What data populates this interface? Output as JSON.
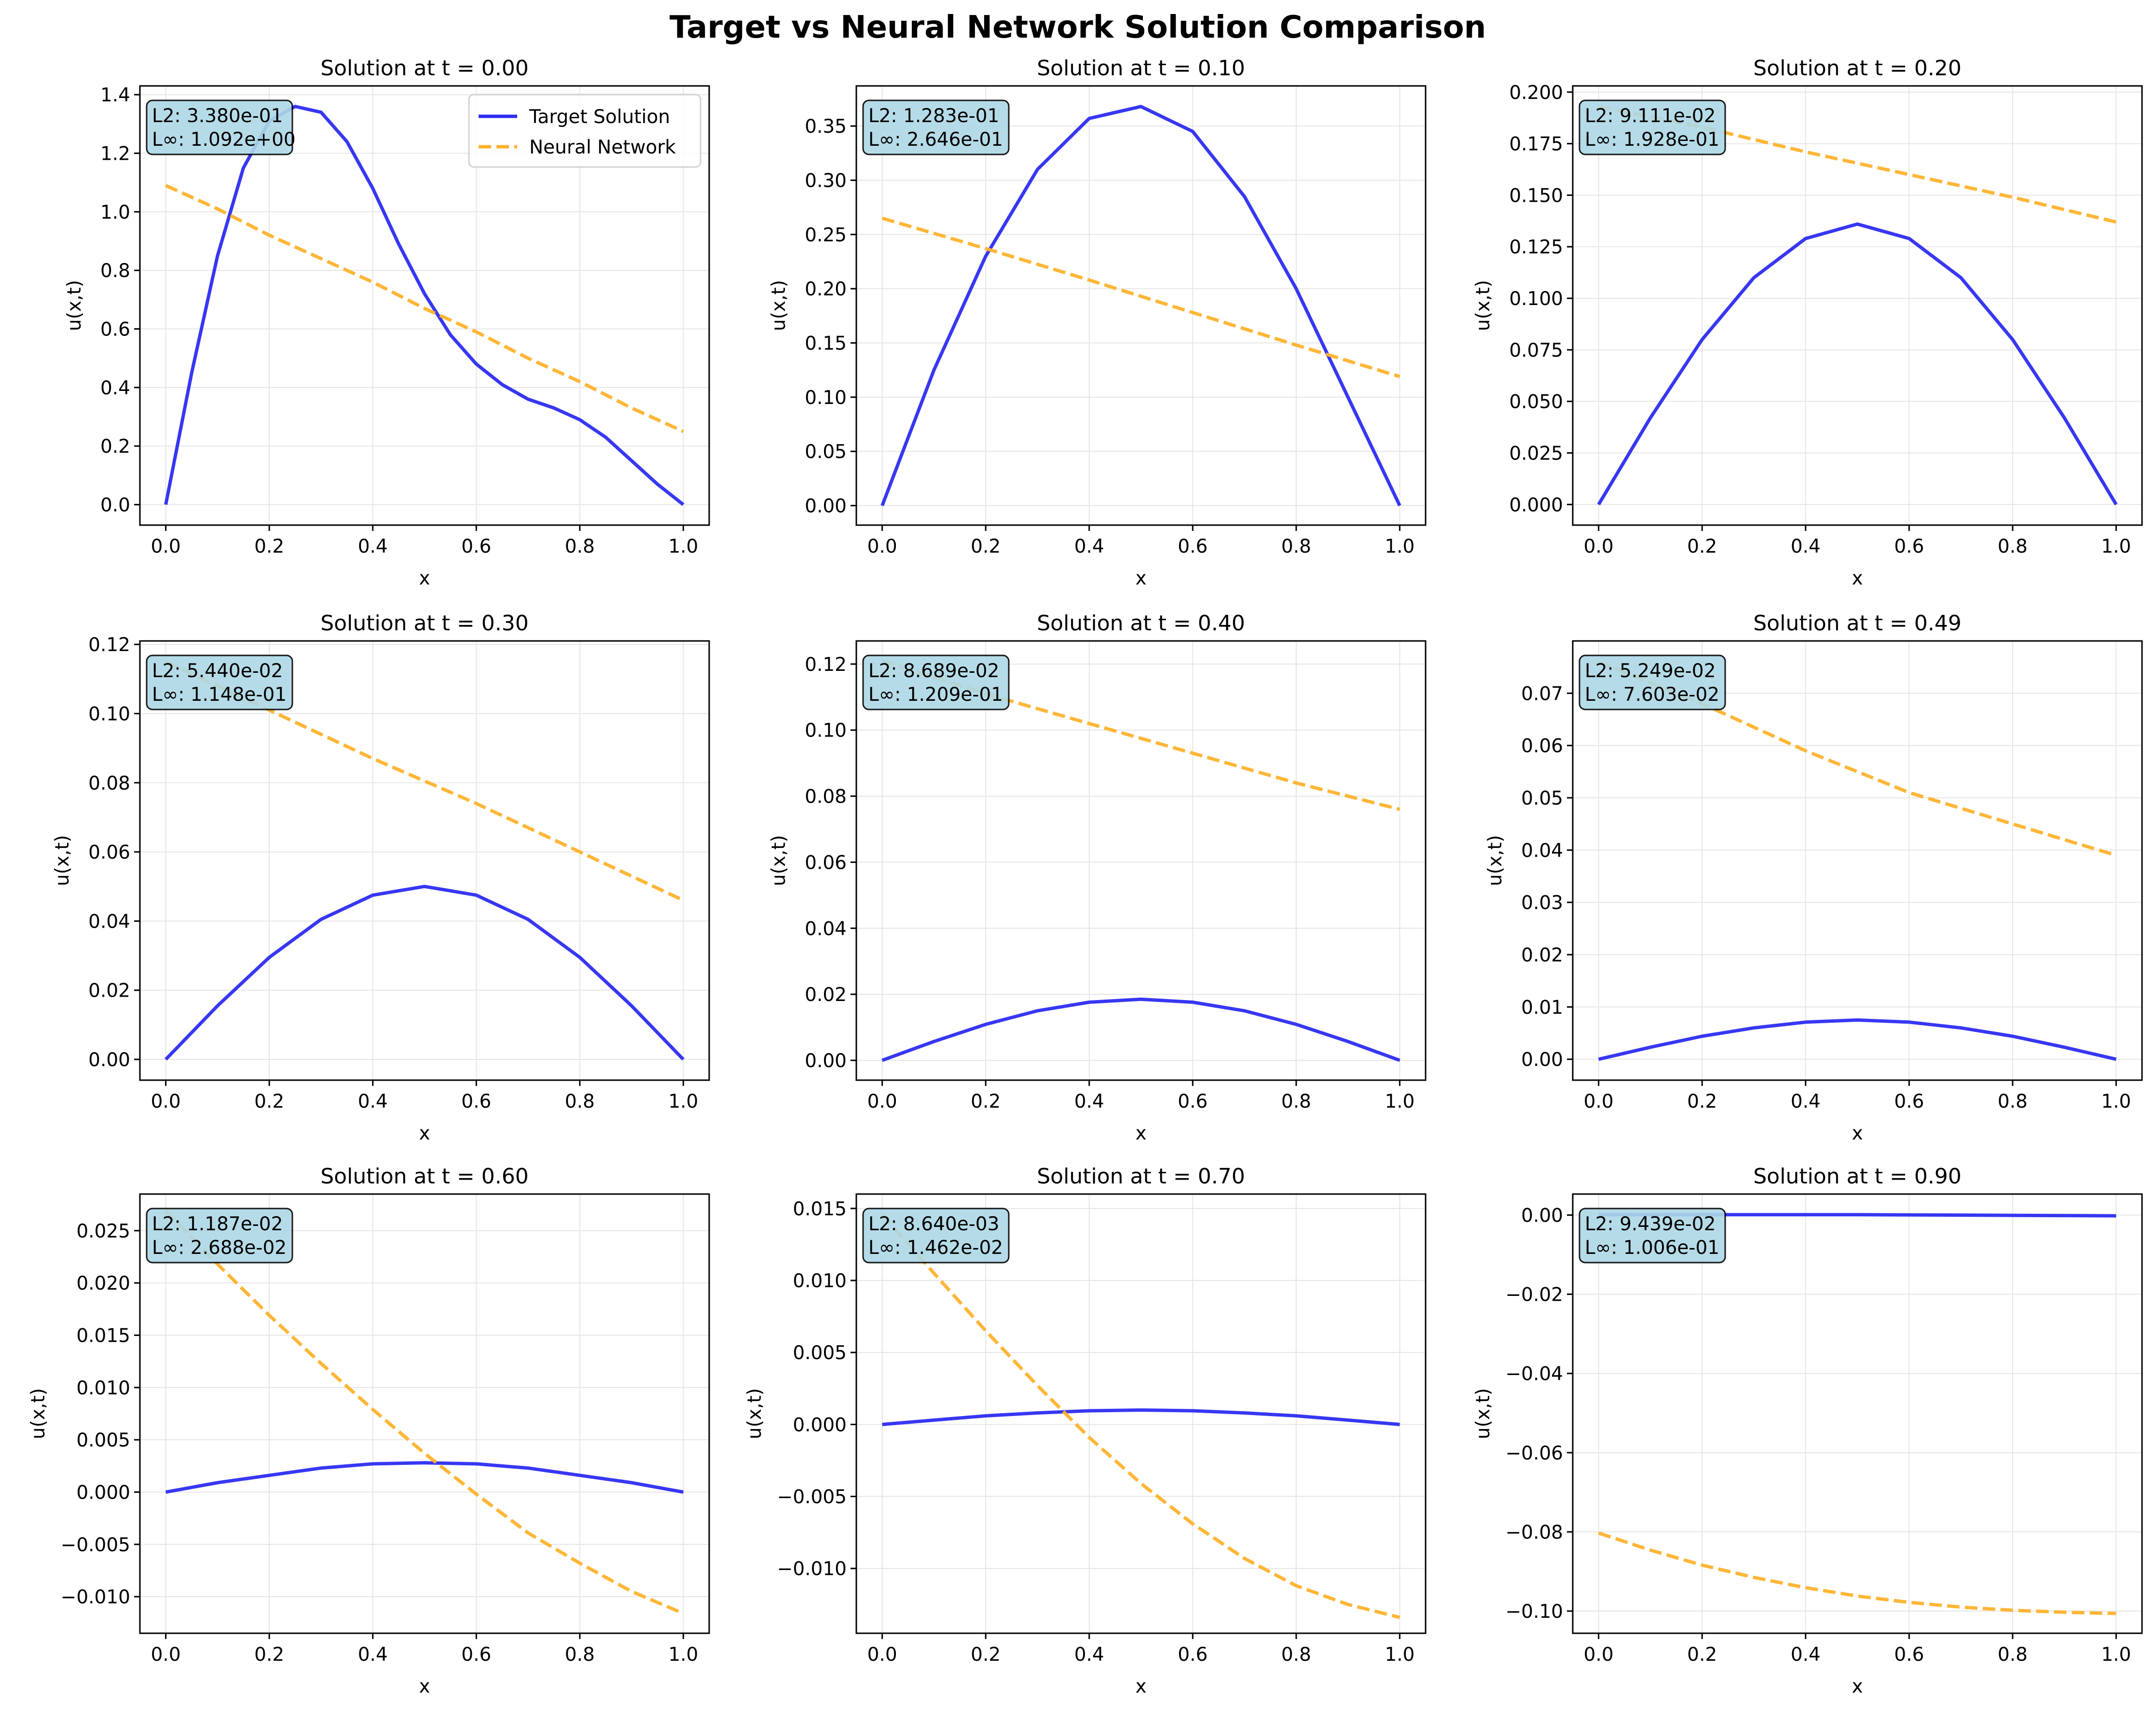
{
  "title": "Target vs Neural Network Solution Comparison",
  "colors": {
    "target": "#2c2cf2",
    "network": "#ffb22c",
    "annotation_bg": "#add8e6",
    "grid": "#e6e6e6"
  },
  "legend": {
    "placement": "upper-right",
    "entries": [
      "Target Solution",
      "Neural Network"
    ]
  },
  "chart_data": [
    {
      "type": "line",
      "title": "Solution at t = 0.00",
      "xlabel": "x",
      "ylabel": "u(x,t)",
      "xlim": [
        -0.05,
        1.05
      ],
      "ylim": [
        -0.07,
        1.43
      ],
      "xticks": [
        0.0,
        0.2,
        0.4,
        0.6,
        0.8,
        1.0
      ],
      "xtick_labels": [
        "0.0",
        "0.2",
        "0.4",
        "0.6",
        "0.8",
        "1.0"
      ],
      "yticks": [
        0,
        0.2,
        0.4,
        0.6,
        0.8,
        1.0,
        1.2,
        1.4
      ],
      "ytick_labels": [
        "0.0",
        "0.2",
        "0.4",
        "0.6",
        "0.8",
        "1.0",
        "1.2",
        "1.4"
      ],
      "annotation": [
        "L2: 3.380e-01",
        "L∞: 1.092e+00"
      ],
      "legend": true,
      "series": [
        {
          "name": "Target Solution",
          "x": [
            0,
            0.05,
            0.1,
            0.15,
            0.2,
            0.25,
            0.3,
            0.35,
            0.4,
            0.45,
            0.5,
            0.55,
            0.6,
            0.65,
            0.7,
            0.75,
            0.8,
            0.85,
            0.9,
            0.95,
            1.0
          ],
          "y": [
            0,
            0.45,
            0.85,
            1.15,
            1.31,
            1.36,
            1.34,
            1.24,
            1.08,
            0.89,
            0.72,
            0.58,
            0.48,
            0.41,
            0.36,
            0.33,
            0.29,
            0.23,
            0.15,
            0.07,
            0
          ]
        },
        {
          "name": "Neural Network",
          "x": [
            0,
            0.1,
            0.2,
            0.3,
            0.4,
            0.5,
            0.6,
            0.7,
            0.8,
            0.9,
            1.0
          ],
          "y": [
            1.09,
            1.01,
            0.92,
            0.84,
            0.76,
            0.67,
            0.59,
            0.5,
            0.42,
            0.33,
            0.25
          ]
        }
      ]
    },
    {
      "type": "line",
      "title": "Solution at t = 0.10",
      "xlabel": "x",
      "ylabel": "u(x,t)",
      "xlim": [
        -0.05,
        1.05
      ],
      "ylim": [
        -0.018,
        0.387
      ],
      "xticks": [
        0.0,
        0.2,
        0.4,
        0.6,
        0.8,
        1.0
      ],
      "xtick_labels": [
        "0.0",
        "0.2",
        "0.4",
        "0.6",
        "0.8",
        "1.0"
      ],
      "yticks": [
        0,
        0.05,
        0.1,
        0.15,
        0.2,
        0.25,
        0.3,
        0.35
      ],
      "ytick_labels": [
        "0.00",
        "0.05",
        "0.10",
        "0.15",
        "0.20",
        "0.25",
        "0.30",
        "0.35"
      ],
      "annotation": [
        "L2: 1.283e-01",
        "L∞: 2.646e-01"
      ],
      "legend": false,
      "series": [
        {
          "name": "Target Solution",
          "x": [
            0,
            0.1,
            0.2,
            0.3,
            0.4,
            0.5,
            0.6,
            0.7,
            0.8,
            0.9,
            1.0
          ],
          "y": [
            0,
            0.125,
            0.23,
            0.31,
            0.357,
            0.368,
            0.345,
            0.285,
            0.2,
            0.1,
            0
          ]
        },
        {
          "name": "Neural Network",
          "x": [
            0,
            0.2,
            0.4,
            0.6,
            0.8,
            1.0
          ],
          "y": [
            0.265,
            0.237,
            0.208,
            0.178,
            0.148,
            0.119
          ]
        }
      ]
    },
    {
      "type": "line",
      "title": "Solution at t = 0.20",
      "xlabel": "x",
      "ylabel": "u(x,t)",
      "xlim": [
        -0.05,
        1.05
      ],
      "ylim": [
        -0.01,
        0.203
      ],
      "xticks": [
        0.0,
        0.2,
        0.4,
        0.6,
        0.8,
        1.0
      ],
      "xtick_labels": [
        "0.0",
        "0.2",
        "0.4",
        "0.6",
        "0.8",
        "1.0"
      ],
      "yticks": [
        0,
        0.025,
        0.05,
        0.075,
        0.1,
        0.125,
        0.15,
        0.175,
        0.2
      ],
      "ytick_labels": [
        "0.000",
        "0.025",
        "0.050",
        "0.075",
        "0.100",
        "0.125",
        "0.150",
        "0.175",
        "0.200"
      ],
      "annotation": [
        "L2: 9.111e-02",
        "L∞: 1.928e-01"
      ],
      "legend": false,
      "series": [
        {
          "name": "Target Solution",
          "x": [
            0,
            0.1,
            0.2,
            0.3,
            0.4,
            0.5,
            0.6,
            0.7,
            0.8,
            0.9,
            1.0
          ],
          "y": [
            0,
            0.042,
            0.08,
            0.11,
            0.129,
            0.136,
            0.129,
            0.11,
            0.08,
            0.042,
            0
          ]
        },
        {
          "name": "Neural Network",
          "x": [
            0,
            0.2,
            0.4,
            0.6,
            0.8,
            1.0
          ],
          "y": [
            0.193,
            0.183,
            0.171,
            0.16,
            0.149,
            0.137
          ]
        }
      ]
    },
    {
      "type": "line",
      "title": "Solution at t = 0.30",
      "xlabel": "x",
      "ylabel": "u(x,t)",
      "xlim": [
        -0.05,
        1.05
      ],
      "ylim": [
        -0.006,
        0.121
      ],
      "xticks": [
        0.0,
        0.2,
        0.4,
        0.6,
        0.8,
        1.0
      ],
      "xtick_labels": [
        "0.0",
        "0.2",
        "0.4",
        "0.6",
        "0.8",
        "1.0"
      ],
      "yticks": [
        0,
        0.02,
        0.04,
        0.06,
        0.08,
        0.1,
        0.12
      ],
      "ytick_labels": [
        "0.00",
        "0.02",
        "0.04",
        "0.06",
        "0.08",
        "0.10",
        "0.12"
      ],
      "annotation": [
        "L2: 5.440e-02",
        "L∞: 1.148e-01"
      ],
      "legend": false,
      "series": [
        {
          "name": "Target Solution",
          "x": [
            0,
            0.1,
            0.2,
            0.3,
            0.4,
            0.5,
            0.6,
            0.7,
            0.8,
            0.9,
            1.0
          ],
          "y": [
            0,
            0.0155,
            0.0295,
            0.0405,
            0.0475,
            0.05,
            0.0475,
            0.0405,
            0.0295,
            0.0155,
            0
          ]
        },
        {
          "name": "Neural Network",
          "x": [
            0,
            0.2,
            0.4,
            0.6,
            0.8,
            1.0
          ],
          "y": [
            0.115,
            0.101,
            0.087,
            0.074,
            0.06,
            0.046
          ]
        }
      ]
    },
    {
      "type": "line",
      "title": "Solution at t = 0.40",
      "xlabel": "x",
      "ylabel": "u(x,t)",
      "xlim": [
        -0.05,
        1.05
      ],
      "ylim": [
        -0.006,
        0.127
      ],
      "xticks": [
        0.0,
        0.2,
        0.4,
        0.6,
        0.8,
        1.0
      ],
      "xtick_labels": [
        "0.0",
        "0.2",
        "0.4",
        "0.6",
        "0.8",
        "1.0"
      ],
      "yticks": [
        0,
        0.02,
        0.04,
        0.06,
        0.08,
        0.1,
        0.12
      ],
      "ytick_labels": [
        "0.00",
        "0.02",
        "0.04",
        "0.06",
        "0.08",
        "0.10",
        "0.12"
      ],
      "annotation": [
        "L2: 8.689e-02",
        "L∞: 1.209e-01"
      ],
      "legend": false,
      "series": [
        {
          "name": "Target Solution",
          "x": [
            0,
            0.1,
            0.2,
            0.3,
            0.4,
            0.5,
            0.6,
            0.7,
            0.8,
            0.9,
            1.0
          ],
          "y": [
            0,
            0.0057,
            0.0109,
            0.015,
            0.0176,
            0.0185,
            0.0176,
            0.015,
            0.0109,
            0.0057,
            0
          ]
        },
        {
          "name": "Neural Network",
          "x": [
            0,
            0.2,
            0.4,
            0.6,
            0.8,
            1.0
          ],
          "y": [
            0.121,
            0.111,
            0.102,
            0.093,
            0.084,
            0.076
          ]
        }
      ]
    },
    {
      "type": "line",
      "title": "Solution at t = 0.49",
      "xlabel": "x",
      "ylabel": "u(x,t)",
      "xlim": [
        -0.05,
        1.05
      ],
      "ylim": [
        -0.004,
        0.08
      ],
      "xticks": [
        0.0,
        0.2,
        0.4,
        0.6,
        0.8,
        1.0
      ],
      "xtick_labels": [
        "0.0",
        "0.2",
        "0.4",
        "0.6",
        "0.8",
        "1.0"
      ],
      "yticks": [
        0,
        0.01,
        0.02,
        0.03,
        0.04,
        0.05,
        0.06,
        0.07
      ],
      "ytick_labels": [
        "0.00",
        "0.01",
        "0.02",
        "0.03",
        "0.04",
        "0.05",
        "0.06",
        "0.07"
      ],
      "annotation": [
        "L2: 5.249e-02",
        "L∞: 7.603e-02"
      ],
      "legend": false,
      "series": [
        {
          "name": "Target Solution",
          "x": [
            0,
            0.1,
            0.2,
            0.3,
            0.4,
            0.5,
            0.6,
            0.7,
            0.8,
            0.9,
            1.0
          ],
          "y": [
            0,
            0.0023,
            0.0044,
            0.006,
            0.0071,
            0.0075,
            0.0071,
            0.006,
            0.0044,
            0.0023,
            0
          ]
        },
        {
          "name": "Neural Network",
          "x": [
            0,
            0.2,
            0.4,
            0.6,
            0.8,
            1.0
          ],
          "y": [
            0.076,
            0.068,
            0.059,
            0.051,
            0.045,
            0.039
          ]
        }
      ]
    },
    {
      "type": "line",
      "title": "Solution at t = 0.60",
      "xlabel": "x",
      "ylabel": "u(x,t)",
      "xlim": [
        -0.05,
        1.05
      ],
      "ylim": [
        -0.0135,
        0.0285
      ],
      "xticks": [
        0.0,
        0.2,
        0.4,
        0.6,
        0.8,
        1.0
      ],
      "xtick_labels": [
        "0.0",
        "0.2",
        "0.4",
        "0.6",
        "0.8",
        "1.0"
      ],
      "yticks": [
        -0.01,
        -0.005,
        0,
        0.005,
        0.01,
        0.015,
        0.02,
        0.025
      ],
      "ytick_labels": [
        "−0.010",
        "−0.005",
        "0.000",
        "0.005",
        "0.010",
        "0.015",
        "0.020",
        "0.025"
      ],
      "annotation": [
        "L2: 1.187e-02",
        "L∞: 2.688e-02"
      ],
      "legend": false,
      "series": [
        {
          "name": "Target Solution",
          "x": [
            0,
            0.1,
            0.2,
            0.3,
            0.4,
            0.5,
            0.6,
            0.7,
            0.8,
            0.9,
            1.0
          ],
          "y": [
            0,
            0.0009,
            0.0016,
            0.0023,
            0.0027,
            0.0028,
            0.0027,
            0.0023,
            0.0016,
            0.0009,
            0
          ]
        },
        {
          "name": "Neural Network",
          "x": [
            0,
            0.1,
            0.2,
            0.3,
            0.4,
            0.5,
            0.6,
            0.7,
            0.8,
            0.9,
            1.0
          ],
          "y": [
            0.0269,
            0.0218,
            0.0169,
            0.0123,
            0.0079,
            0.0037,
            -0.0002,
            -0.0039,
            -0.0068,
            -0.0095,
            -0.0116
          ]
        }
      ]
    },
    {
      "type": "line",
      "title": "Solution at t = 0.70",
      "xlabel": "x",
      "ylabel": "u(x,t)",
      "xlim": [
        -0.05,
        1.05
      ],
      "ylim": [
        -0.0145,
        0.016
      ],
      "xticks": [
        0.0,
        0.2,
        0.4,
        0.6,
        0.8,
        1.0
      ],
      "xtick_labels": [
        "0.0",
        "0.2",
        "0.4",
        "0.6",
        "0.8",
        "1.0"
      ],
      "yticks": [
        -0.01,
        -0.005,
        0,
        0.005,
        0.01,
        0.015
      ],
      "ytick_labels": [
        "−0.010",
        "−0.005",
        "0.000",
        "0.005",
        "0.010",
        "0.015"
      ],
      "annotation": [
        "L2: 8.640e-03",
        "L∞: 1.462e-02"
      ],
      "legend": false,
      "series": [
        {
          "name": "Target Solution",
          "x": [
            0,
            0.1,
            0.2,
            0.3,
            0.4,
            0.5,
            0.6,
            0.7,
            0.8,
            0.9,
            1.0
          ],
          "y": [
            0,
            0.0003,
            0.0006,
            0.0008,
            0.00095,
            0.001,
            0.00095,
            0.0008,
            0.0006,
            0.0003,
            0
          ]
        },
        {
          "name": "Neural Network",
          "x": [
            0,
            0.1,
            0.2,
            0.3,
            0.4,
            0.5,
            0.6,
            0.7,
            0.8,
            0.9,
            1.0
          ],
          "y": [
            0.0146,
            0.0105,
            0.0065,
            0.0027,
            -0.0009,
            -0.0041,
            -0.0069,
            -0.0093,
            -0.0112,
            -0.0125,
            -0.0134
          ]
        }
      ]
    },
    {
      "type": "line",
      "title": "Solution at t = 0.90",
      "xlabel": "x",
      "ylabel": "u(x,t)",
      "xlim": [
        -0.05,
        1.05
      ],
      "ylim": [
        -0.1056,
        0.0053
      ],
      "xticks": [
        0.0,
        0.2,
        0.4,
        0.6,
        0.8,
        1.0
      ],
      "xtick_labels": [
        "0.0",
        "0.2",
        "0.4",
        "0.6",
        "0.8",
        "1.0"
      ],
      "yticks": [
        -0.1,
        -0.08,
        -0.06,
        -0.04,
        -0.02,
        0
      ],
      "ytick_labels": [
        "−0.10",
        "−0.08",
        "−0.06",
        "−0.04",
        "−0.02",
        "0.00"
      ],
      "annotation": [
        "L2: 9.439e-02",
        "L∞: 1.006e-01"
      ],
      "legend": false,
      "series": [
        {
          "name": "Target Solution",
          "x": [
            0,
            0.5,
            1.0
          ],
          "y": [
            0.0001,
            0.0001,
            -0.0002
          ]
        },
        {
          "name": "Neural Network",
          "x": [
            0,
            0.1,
            0.2,
            0.3,
            0.4,
            0.5,
            0.6,
            0.7,
            0.8,
            0.9,
            1.0
          ],
          "y": [
            -0.0803,
            -0.0846,
            -0.0884,
            -0.0915,
            -0.0941,
            -0.0962,
            -0.0978,
            -0.099,
            -0.0998,
            -0.1003,
            -0.1006
          ]
        }
      ]
    }
  ]
}
